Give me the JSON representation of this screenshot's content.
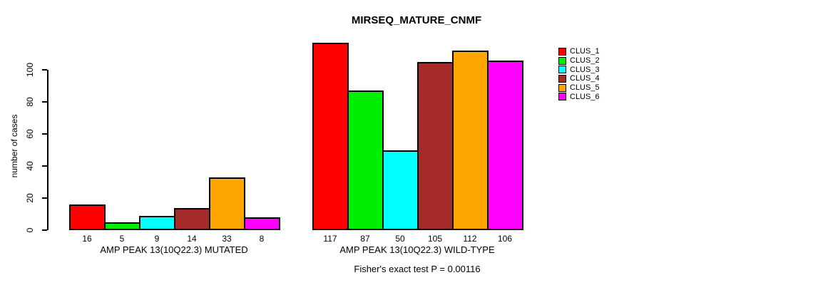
{
  "chart_data": {
    "type": "bar",
    "title": "MIRSEQ_MATURE_CNMF",
    "ylabel": "number of cases",
    "xlabel": "",
    "ylim": [
      0,
      100
    ],
    "yticks": [
      0,
      20,
      40,
      60,
      80,
      100
    ],
    "grid": false,
    "legend_position": "right",
    "categories": [
      "AMP PEAK 13(10Q22.3) MUTATED",
      "AMP PEAK 13(10Q22.3) WILD-TYPE"
    ],
    "series": [
      {
        "name": "CLUS_1",
        "color": "#FF0000",
        "values": [
          16,
          117
        ]
      },
      {
        "name": "CLUS_2",
        "color": "#00EE00",
        "values": [
          5,
          87
        ]
      },
      {
        "name": "CLUS_3",
        "color": "#00FFFF",
        "values": [
          9,
          50
        ]
      },
      {
        "name": "CLUS_4",
        "color": "#A52A2A",
        "values": [
          14,
          105
        ]
      },
      {
        "name": "CLUS_5",
        "color": "#FFA500",
        "values": [
          33,
          112
        ]
      },
      {
        "name": "CLUS_6",
        "color": "#FF00FF",
        "values": [
          8,
          106
        ]
      }
    ],
    "bar_value_labels_visible": true,
    "annotation": "Fisher's exact test P = 0.00116",
    "text_color": "#000000",
    "background_color": "#FFFFFF"
  }
}
